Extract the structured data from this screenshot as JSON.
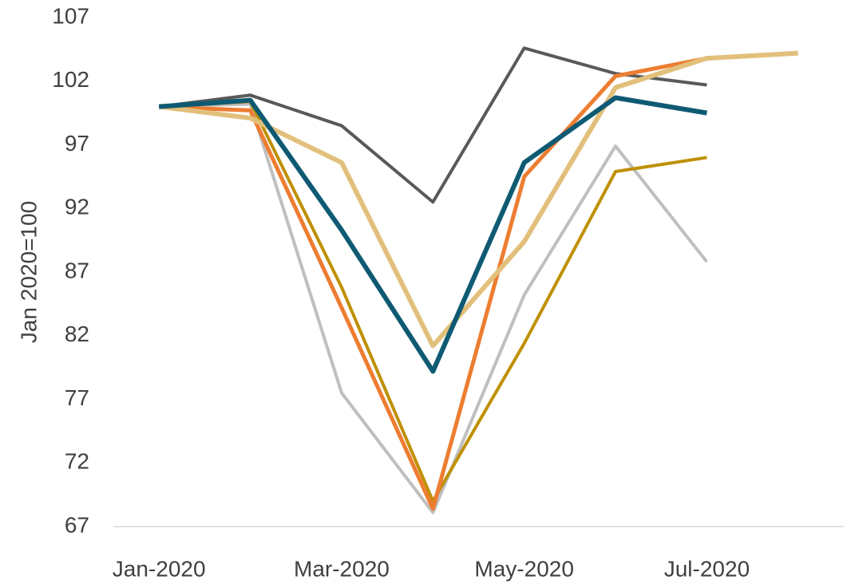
{
  "chart_data": {
    "type": "line",
    "y_label": "Jan 2020=100",
    "categories": [
      "Jan-2020",
      null,
      "Mar-2020",
      null,
      "May-2020",
      null,
      "Jul-2020",
      null
    ],
    "ylim": [
      67,
      107
    ],
    "yticks": [
      67,
      72,
      77,
      82,
      87,
      92,
      97,
      102,
      107
    ],
    "grid": false,
    "series": [
      {
        "color": "#595959",
        "width": 4,
        "values": [
          100,
          100.9,
          98.5,
          92.5,
          104.6,
          102.6,
          101.7,
          null
        ]
      },
      {
        "color": "#bfbfbf",
        "width": 4,
        "values": [
          100,
          100.2,
          77.5,
          68.1,
          85.2,
          96.9,
          87.8,
          null
        ]
      },
      {
        "color": "#bf9000",
        "width": 4,
        "values": [
          100,
          100.4,
          85.8,
          69.0,
          81.4,
          94.9,
          96.0,
          null
        ]
      },
      {
        "color": "#ed7d31",
        "width": 5,
        "values": [
          100,
          99.7,
          84.2,
          68.4,
          94.5,
          102.4,
          103.8,
          null
        ]
      },
      {
        "color": "#e2c07c",
        "width": 6,
        "values": [
          100,
          99.1,
          95.6,
          81.2,
          89.4,
          101.5,
          103.8,
          104.2
        ]
      },
      {
        "color": "#0e5a73",
        "width": 6,
        "values": [
          100,
          100.5,
          90.3,
          79.2,
          95.6,
          100.7,
          99.5,
          null
        ]
      }
    ]
  }
}
